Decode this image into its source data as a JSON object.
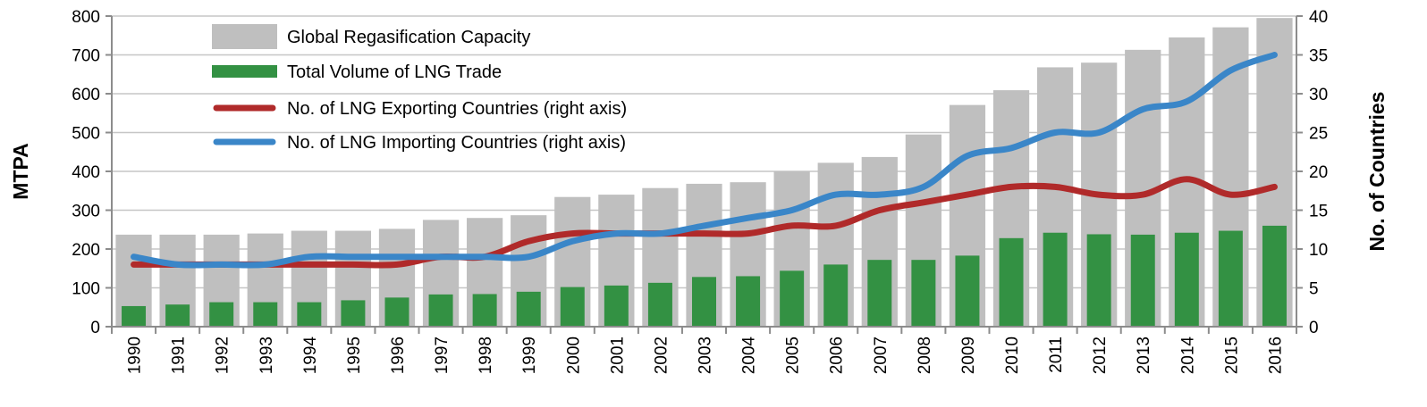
{
  "chart_data": {
    "type": "bar",
    "categories": [
      "1990",
      "1991",
      "1992",
      "1993",
      "1994",
      "1995",
      "1996",
      "1997",
      "1998",
      "1999",
      "2000",
      "2001",
      "2002",
      "2003",
      "2004",
      "2005",
      "2006",
      "2007",
      "2008",
      "2009",
      "2010",
      "2011",
      "2012",
      "2013",
      "2014",
      "2015",
      "2016"
    ],
    "series": [
      {
        "name": "Global Regasification Capacity",
        "type": "bar",
        "axis": "left",
        "color": "#bfbfbf",
        "values": [
          237,
          237,
          237,
          240,
          247,
          247,
          252,
          275,
          280,
          287,
          334,
          340,
          357,
          368,
          372,
          400,
          422,
          437,
          495,
          571,
          609,
          668,
          680,
          713,
          745,
          771,
          795
        ]
      },
      {
        "name": "Total Volume of LNG Trade",
        "type": "bar",
        "axis": "left",
        "color": "#339143",
        "values": [
          53,
          57,
          63,
          63,
          63,
          68,
          75,
          83,
          84,
          90,
          102,
          106,
          113,
          128,
          130,
          144,
          160,
          172,
          172,
          183,
          228,
          242,
          238,
          237,
          242,
          247,
          260
        ]
      },
      {
        "name": "No. of LNG Exporting Countries (right axis)",
        "type": "line",
        "axis": "right",
        "color": "#b02a2a",
        "values": [
          8,
          8,
          8,
          8,
          8,
          8,
          8,
          9,
          9,
          11,
          12,
          12,
          12,
          12,
          12,
          13,
          13,
          15,
          16,
          17,
          18,
          18,
          17,
          17,
          19,
          17,
          18
        ]
      },
      {
        "name": "No. of LNG Importing Countries (right axis)",
        "type": "line",
        "axis": "right",
        "color": "#3a86c8",
        "values": [
          9,
          8,
          8,
          8,
          9,
          9,
          9,
          9,
          9,
          9,
          11,
          12,
          12,
          13,
          14,
          15,
          17,
          17,
          18,
          22,
          23,
          25,
          25,
          28,
          29,
          33,
          35
        ]
      }
    ],
    "ylabel": "MTPA",
    "y2label": "No. of Countries",
    "ylim": [
      0,
      800
    ],
    "y2lim": [
      0,
      40
    ],
    "yticks": [
      "0",
      "100",
      "200",
      "300",
      "400",
      "500",
      "600",
      "700",
      "800"
    ],
    "y2ticks": [
      "0",
      "5",
      "10",
      "15",
      "20",
      "25",
      "30",
      "35",
      "40"
    ],
    "grid": true,
    "legend_position": "top-left"
  }
}
